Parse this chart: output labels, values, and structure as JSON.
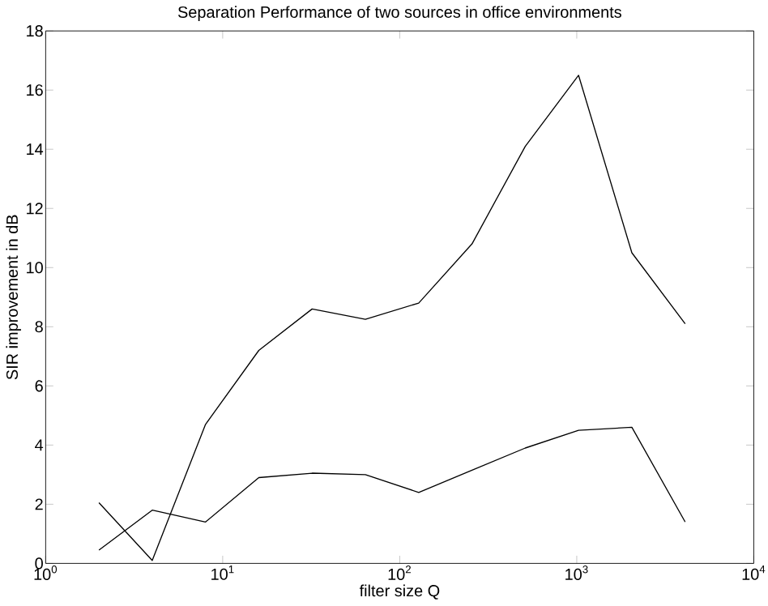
{
  "chart_data": {
    "type": "line",
    "title": "Separation Performance of two sources in office environments",
    "xlabel": "filter size Q",
    "ylabel": "SIR improvement in dB",
    "log": "x",
    "xlim": [
      1,
      10000
    ],
    "xticks": [
      {
        "value": 1,
        "label": "10$^{0}$"
      },
      {
        "value": 10,
        "label": "10$^{1}$"
      },
      {
        "value": 100,
        "label": "10$^{2}$"
      },
      {
        "value": 1000,
        "label": "10$^{3}$"
      },
      {
        "value": 10000,
        "label": "10$^{4}$"
      }
    ],
    "ylim": [
      0,
      18
    ],
    "yticks": [
      0,
      2,
      4,
      6,
      8,
      10,
      12,
      14,
      16,
      18
    ],
    "marker": "none",
    "line_style": "solid",
    "x": [
      2,
      4,
      8,
      16,
      32,
      64,
      128,
      256,
      512,
      1024,
      2048,
      4096
    ],
    "series": [
      {
        "color": "#000000",
        "values": [
          2.05,
          0.1,
          4.7,
          7.2,
          8.6,
          8.25,
          8.8,
          10.8,
          14.1,
          16.5,
          10.5,
          8.1
        ]
      },
      {
        "color": "#000000",
        "values": [
          0.45,
          1.8,
          1.4,
          2.9,
          3.05,
          3.0,
          2.4,
          3.15,
          3.9,
          4.5,
          4.6,
          1.4
        ]
      }
    ]
  }
}
